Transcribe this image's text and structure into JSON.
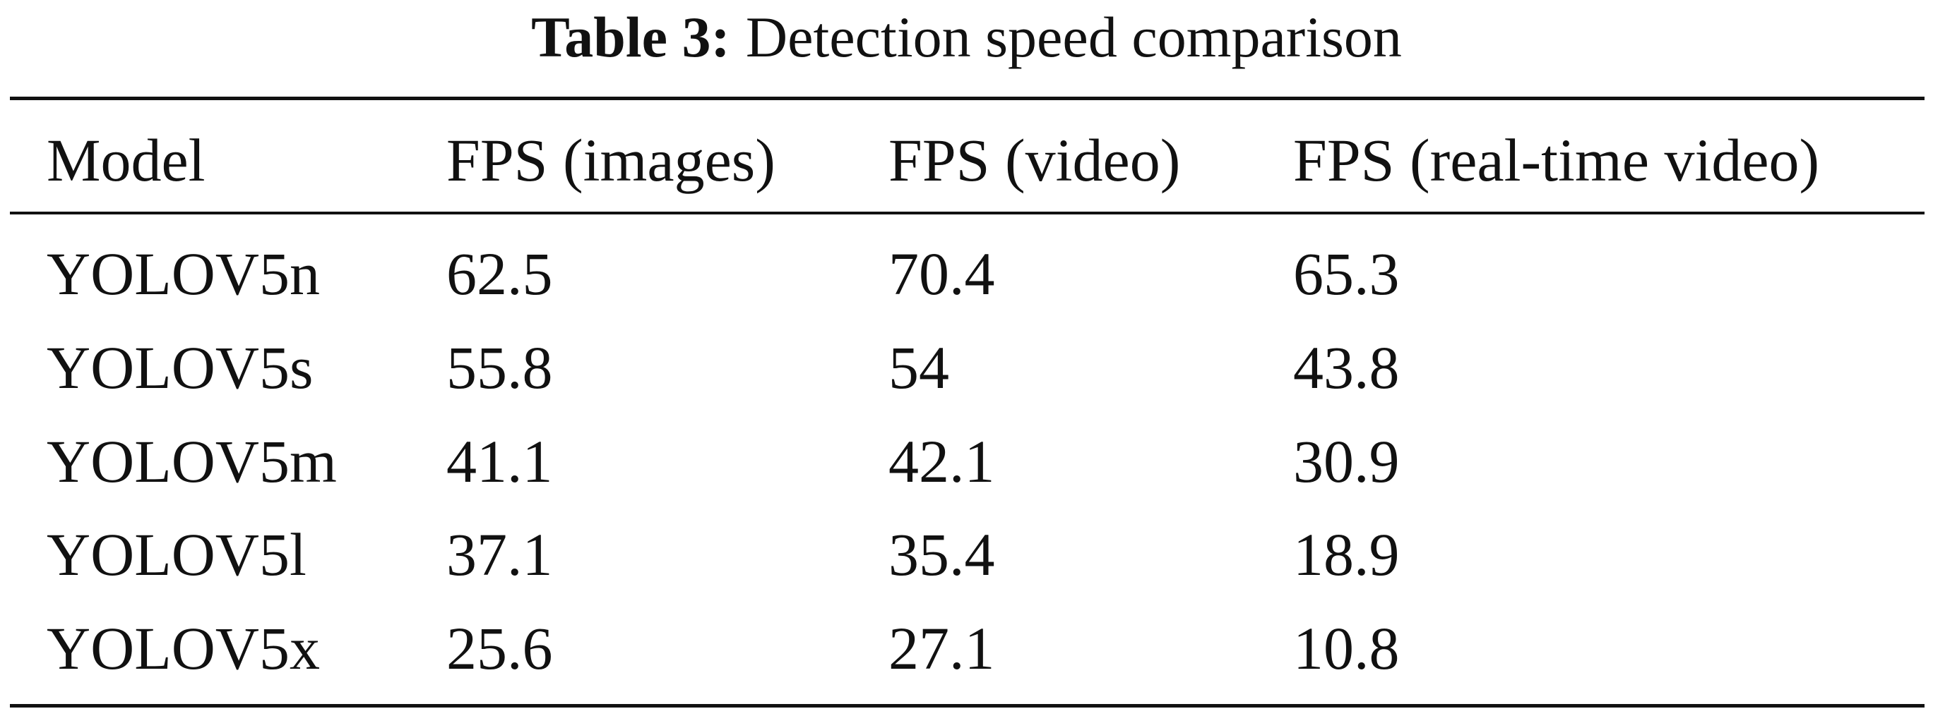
{
  "table": {
    "caption_label": "Table 3:",
    "caption": "Detection speed comparison",
    "header": [
      "Model",
      "FPS (images)",
      "FPS (video)",
      "FPS (real-time video)"
    ],
    "rows": [
      [
        "YOLOV5n",
        62.5,
        70.4,
        65.3
      ],
      [
        "YOLOV5s",
        55.8,
        54,
        43.8
      ],
      [
        "YOLOV5m",
        41.1,
        42.1,
        30.9
      ],
      [
        "YOLOV5l",
        37.1,
        35.4,
        18.9
      ],
      [
        "YOLOV5x",
        25.6,
        27.1,
        10.8
      ]
    ]
  }
}
